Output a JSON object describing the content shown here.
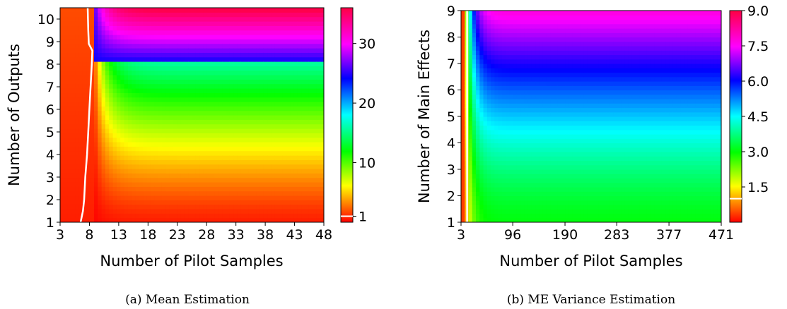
{
  "chart_data": [
    {
      "type": "heatmap",
      "caption": "(a) Mean Estimation",
      "xlabel": "Number of Pilot Samples",
      "ylabel": "Number of Outputs",
      "xlim": [
        3,
        48
      ],
      "ylim": [
        1,
        10.5
      ],
      "x_ticks": [
        3,
        8,
        13,
        18,
        23,
        28,
        33,
        38,
        43,
        48
      ],
      "y_ticks": [
        1,
        2,
        3,
        4,
        5,
        6,
        7,
        8,
        9,
        10
      ],
      "colorbar": {
        "min": 0,
        "max": 36,
        "ticks": [
          1,
          10,
          20,
          30
        ],
        "marker_value": 1,
        "marker_color": "#ffffff"
      },
      "contour": {
        "level": 1,
        "color": "#ffffff",
        "points": [
          {
            "x": 6.5,
            "y": 1.0
          },
          {
            "x": 6.9,
            "y": 1.5
          },
          {
            "x": 7.1,
            "y": 2.0
          },
          {
            "x": 7.3,
            "y": 3.0
          },
          {
            "x": 7.6,
            "y": 4.0
          },
          {
            "x": 7.8,
            "y": 5.0
          },
          {
            "x": 8.0,
            "y": 6.0
          },
          {
            "x": 8.2,
            "y": 7.0
          },
          {
            "x": 8.4,
            "y": 8.0
          },
          {
            "x": 8.5,
            "y": 8.6
          },
          {
            "x": 7.9,
            "y": 8.9
          },
          {
            "x": 7.8,
            "y": 9.5
          },
          {
            "x": 7.7,
            "y": 10.5
          }
        ]
      }
    },
    {
      "type": "heatmap",
      "caption": "(b) ME Variance Estimation",
      "xlabel": "Number of Pilot Samples",
      "ylabel": "Number of Main Effects",
      "xlim": [
        3,
        471
      ],
      "ylim": [
        1,
        9
      ],
      "x_ticks": [
        3,
        96,
        190,
        283,
        377,
        471
      ],
      "y_ticks": [
        1,
        2,
        3,
        4,
        5,
        6,
        7,
        8,
        9
      ],
      "colorbar": {
        "min": 0,
        "max": 9,
        "ticks": [
          "1.5",
          "3.0",
          "4.5",
          "6.0",
          "7.5",
          "9.0"
        ],
        "marker_value": 1,
        "marker_color": "#ffffff"
      },
      "contour": {
        "level": 1,
        "color": "#ffffff",
        "points": [
          {
            "x": 14,
            "y": 1.0
          },
          {
            "x": 14,
            "y": 9.0
          }
        ]
      }
    }
  ]
}
